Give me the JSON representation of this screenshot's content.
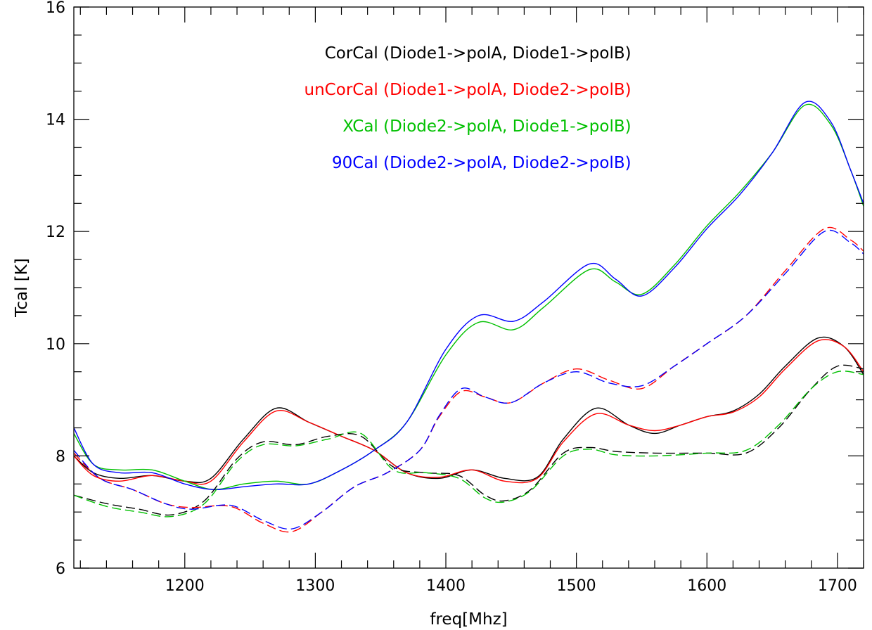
{
  "chart_data": {
    "type": "line",
    "xlabel": "freq[Mhz]",
    "ylabel": "Tcal [K]",
    "xlim": [
      1115,
      1720
    ],
    "ylim": [
      6,
      16
    ],
    "x_ticks": [
      1200,
      1300,
      1400,
      1500,
      1600,
      1700
    ],
    "y_ticks": [
      6,
      8,
      10,
      12,
      14,
      16
    ],
    "x_minor_step": 20,
    "y_minor_step": 0.5,
    "grid": false,
    "legend_position": "top-center",
    "legend": [
      {
        "text": "CorCal (Diode1->polA, Diode1->polB)",
        "color": "#000000"
      },
      {
        "text": "unCorCal (Diode1->polA, Diode2->polB)",
        "color": "#ff0000"
      },
      {
        "text": "XCal (Diode2->polA, Diode1->polB)",
        "color": "#00c000"
      },
      {
        "text": "90Cal (Diode2->polA, Diode2->polB)",
        "color": "#0000ff"
      }
    ],
    "series": [
      {
        "color": "#000000",
        "style": "solid",
        "x": [
          1115,
          1130,
          1150,
          1175,
          1200,
          1220,
          1245,
          1270,
          1295,
          1320,
          1345,
          1370,
          1395,
          1420,
          1445,
          1470,
          1490,
          1515,
          1540,
          1560,
          1580,
          1600,
          1620,
          1640,
          1660,
          1685,
          1705,
          1720
        ],
        "y": [
          8.0,
          7.7,
          7.6,
          7.65,
          7.55,
          7.6,
          8.3,
          8.85,
          8.6,
          8.35,
          8.1,
          7.7,
          7.6,
          7.75,
          7.6,
          7.62,
          8.3,
          8.85,
          8.55,
          8.4,
          8.55,
          8.7,
          8.8,
          9.1,
          9.6,
          10.1,
          9.95,
          9.45
        ]
      },
      {
        "color": "#ff0000",
        "style": "solid",
        "x": [
          1115,
          1130,
          1150,
          1175,
          1200,
          1220,
          1245,
          1270,
          1295,
          1320,
          1345,
          1370,
          1395,
          1420,
          1445,
          1470,
          1490,
          1515,
          1540,
          1560,
          1580,
          1600,
          1620,
          1640,
          1660,
          1685,
          1705,
          1720
        ],
        "y": [
          8.0,
          7.65,
          7.55,
          7.65,
          7.55,
          7.55,
          8.25,
          8.8,
          8.6,
          8.35,
          8.1,
          7.7,
          7.62,
          7.75,
          7.55,
          7.6,
          8.25,
          8.75,
          8.55,
          8.45,
          8.55,
          8.7,
          8.78,
          9.05,
          9.55,
          10.05,
          9.95,
          9.5
        ]
      },
      {
        "color": "#00c000",
        "style": "solid",
        "x": [
          1115,
          1130,
          1150,
          1175,
          1200,
          1222,
          1245,
          1270,
          1295,
          1320,
          1345,
          1370,
          1400,
          1425,
          1452,
          1475,
          1510,
          1530,
          1550,
          1575,
          1600,
          1625,
          1650,
          1675,
          1695,
          1710,
          1720
        ],
        "y": [
          8.4,
          7.85,
          7.75,
          7.75,
          7.55,
          7.4,
          7.5,
          7.55,
          7.5,
          7.75,
          8.1,
          8.6,
          9.8,
          10.38,
          10.25,
          10.65,
          11.32,
          11.1,
          10.88,
          11.4,
          12.1,
          12.7,
          13.4,
          14.25,
          13.9,
          13.1,
          12.45
        ]
      },
      {
        "color": "#0000ff",
        "style": "solid",
        "x": [
          1115,
          1130,
          1150,
          1175,
          1200,
          1222,
          1245,
          1270,
          1295,
          1320,
          1345,
          1370,
          1400,
          1425,
          1452,
          1475,
          1510,
          1530,
          1550,
          1575,
          1600,
          1625,
          1650,
          1675,
          1695,
          1710,
          1720
        ],
        "y": [
          8.5,
          7.85,
          7.7,
          7.7,
          7.5,
          7.4,
          7.45,
          7.5,
          7.5,
          7.75,
          8.1,
          8.6,
          9.9,
          10.5,
          10.4,
          10.75,
          11.42,
          11.15,
          10.85,
          11.35,
          12.05,
          12.65,
          13.4,
          14.3,
          13.95,
          13.1,
          12.5
        ]
      },
      {
        "color": "#000000",
        "style": "dashed",
        "x": [
          1115,
          1140,
          1165,
          1190,
          1215,
          1240,
          1260,
          1285,
          1310,
          1335,
          1360,
          1385,
          1410,
          1430,
          1445,
          1465,
          1490,
          1510,
          1530,
          1560,
          1600,
          1630,
          1655,
          1680,
          1700,
          1720
        ],
        "y": [
          7.3,
          7.15,
          7.05,
          6.95,
          7.2,
          7.95,
          8.25,
          8.2,
          8.35,
          8.35,
          7.8,
          7.7,
          7.65,
          7.3,
          7.2,
          7.4,
          8.05,
          8.15,
          8.08,
          8.05,
          8.05,
          8.05,
          8.5,
          9.2,
          9.6,
          9.55
        ]
      },
      {
        "color": "#00c000",
        "style": "dashed",
        "x": [
          1115,
          1140,
          1165,
          1190,
          1215,
          1240,
          1260,
          1285,
          1310,
          1335,
          1360,
          1385,
          1410,
          1430,
          1445,
          1465,
          1490,
          1510,
          1530,
          1560,
          1600,
          1630,
          1655,
          1680,
          1700,
          1720
        ],
        "y": [
          7.3,
          7.1,
          7.0,
          6.92,
          7.15,
          7.9,
          8.2,
          8.18,
          8.3,
          8.4,
          7.75,
          7.7,
          7.6,
          7.25,
          7.18,
          7.38,
          8.0,
          8.12,
          8.02,
          8.0,
          8.05,
          8.1,
          8.55,
          9.2,
          9.5,
          9.45
        ]
      },
      {
        "color": "#ff0000",
        "style": "dashed",
        "x": [
          1115,
          1135,
          1160,
          1185,
          1205,
          1235,
          1260,
          1282,
          1305,
          1330,
          1355,
          1380,
          1395,
          1412,
          1430,
          1450,
          1475,
          1500,
          1525,
          1550,
          1575,
          1600,
          1630,
          1660,
          1690,
          1710,
          1720
        ],
        "y": [
          8.05,
          7.6,
          7.4,
          7.15,
          7.08,
          7.1,
          6.8,
          6.65,
          7.0,
          7.45,
          7.7,
          8.1,
          8.7,
          9.15,
          9.05,
          8.95,
          9.3,
          9.55,
          9.35,
          9.2,
          9.6,
          10.0,
          10.5,
          11.3,
          12.05,
          11.85,
          11.65
        ]
      },
      {
        "color": "#0000ff",
        "style": "dashed",
        "x": [
          1115,
          1135,
          1160,
          1185,
          1205,
          1235,
          1260,
          1282,
          1305,
          1330,
          1355,
          1380,
          1395,
          1412,
          1430,
          1450,
          1475,
          1500,
          1525,
          1550,
          1575,
          1600,
          1630,
          1660,
          1690,
          1710,
          1720
        ],
        "y": [
          8.1,
          7.6,
          7.4,
          7.15,
          7.05,
          7.12,
          6.85,
          6.7,
          7.0,
          7.45,
          7.7,
          8.1,
          8.72,
          9.2,
          9.05,
          8.95,
          9.3,
          9.5,
          9.3,
          9.25,
          9.6,
          10.0,
          10.5,
          11.25,
          12.0,
          11.8,
          11.6
        ]
      }
    ]
  }
}
